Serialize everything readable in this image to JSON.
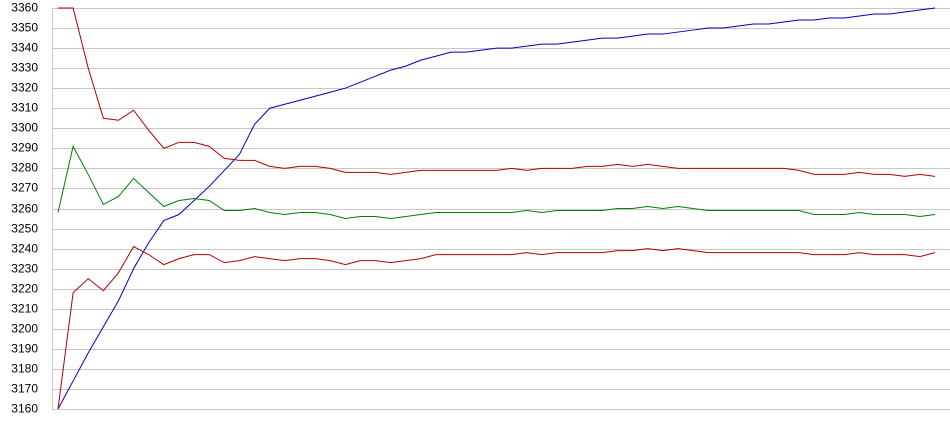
{
  "chart_data": {
    "type": "line",
    "ylim": [
      3160,
      3360
    ],
    "yticks": [
      3160,
      3170,
      3180,
      3190,
      3200,
      3210,
      3220,
      3230,
      3240,
      3250,
      3260,
      3270,
      3280,
      3290,
      3300,
      3310,
      3320,
      3330,
      3340,
      3350,
      3360
    ],
    "grid": true,
    "series": [
      {
        "color": "#0000c0",
        "values": [
          3160,
          3174,
          3188,
          3201,
          3214,
          3230,
          3243,
          3254,
          3257,
          3264,
          3271,
          3279,
          3287,
          3302,
          3310,
          3312,
          3314,
          3316,
          3318,
          3320,
          3323,
          3326,
          3329,
          3331,
          3334,
          3336,
          3338,
          3338,
          3339,
          3340,
          3340,
          3341,
          3342,
          3342,
          3343,
          3344,
          3345,
          3345,
          3346,
          3347,
          3347,
          3348,
          3349,
          3350,
          3350,
          3351,
          3352,
          3352,
          3353,
          3354,
          3354,
          3355,
          3355,
          3356,
          3357,
          3357,
          3358,
          3359,
          3360
        ]
      },
      {
        "color": "#b00000",
        "values": [
          3360,
          3360,
          3330,
          3305,
          3304,
          3309,
          3299,
          3290,
          3293,
          3293,
          3291,
          3285,
          3284,
          3284,
          3281,
          3280,
          3281,
          3281,
          3280,
          3278,
          3278,
          3278,
          3277,
          3278,
          3279,
          3279,
          3279,
          3279,
          3279,
          3279,
          3280,
          3279,
          3280,
          3280,
          3280,
          3281,
          3281,
          3282,
          3281,
          3282,
          3281,
          3280,
          3280,
          3280,
          3280,
          3280,
          3280,
          3280,
          3280,
          3279,
          3277,
          3277,
          3277,
          3278,
          3277,
          3277,
          3276,
          3277,
          3276
        ]
      },
      {
        "color": "#008000",
        "values": [
          3258,
          3291,
          3277,
          3262,
          3266,
          3275,
          3268,
          3261,
          3264,
          3265,
          3264,
          3259,
          3259,
          3260,
          3258,
          3257,
          3258,
          3258,
          3257,
          3255,
          3256,
          3256,
          3255,
          3256,
          3257,
          3258,
          3258,
          3258,
          3258,
          3258,
          3258,
          3259,
          3258,
          3259,
          3259,
          3259,
          3259,
          3260,
          3260,
          3261,
          3260,
          3261,
          3260,
          3259,
          3259,
          3259,
          3259,
          3259,
          3259,
          3259,
          3257,
          3257,
          3257,
          3258,
          3257,
          3257,
          3257,
          3256,
          3257
        ]
      },
      {
        "color": "#b00000",
        "values": [
          3160,
          3218,
          3225,
          3219,
          3228,
          3241,
          3237,
          3232,
          3235,
          3237,
          3237,
          3233,
          3234,
          3236,
          3235,
          3234,
          3235,
          3235,
          3234,
          3232,
          3234,
          3234,
          3233,
          3234,
          3235,
          3237,
          3237,
          3237,
          3237,
          3237,
          3237,
          3238,
          3237,
          3238,
          3238,
          3238,
          3238,
          3239,
          3239,
          3240,
          3239,
          3240,
          3239,
          3238,
          3238,
          3238,
          3238,
          3238,
          3238,
          3238,
          3237,
          3237,
          3237,
          3238,
          3237,
          3237,
          3237,
          3236,
          3238
        ]
      }
    ]
  }
}
